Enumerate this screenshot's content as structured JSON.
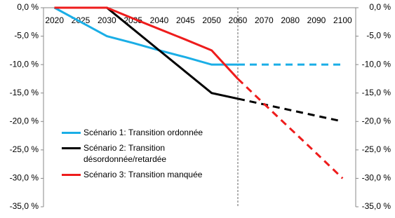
{
  "chart_data": {
    "type": "line",
    "categories": [
      "2020",
      "2025",
      "2030",
      "2035",
      "2040",
      "2045",
      "2050",
      "2060",
      "2070",
      "2080",
      "2090",
      "2100"
    ],
    "series": [
      {
        "name": "Scénario 1: Transition ordonnée",
        "color": "#1aaee6",
        "values": [
          0,
          -2.5,
          -5,
          -6.2,
          -7.5,
          -8.7,
          -10,
          -10,
          -10,
          -10,
          -10,
          -10
        ]
      },
      {
        "name": "Scénario 2: Transition désordonnée/retardée",
        "color": "#000000",
        "values": [
          0,
          0,
          0,
          -3.75,
          -7.5,
          -11.25,
          -15,
          -16,
          -17,
          -18,
          -19,
          -20
        ]
      },
      {
        "name": "Scénario 3: Transition manquée",
        "color": "#ee1c1c",
        "values": [
          0,
          0,
          0,
          -1.9,
          -3.75,
          -5.6,
          -7.5,
          -12.5,
          -16.9,
          -21.25,
          -25.6,
          -30
        ]
      }
    ],
    "projection_from": "2060",
    "ylim": [
      -35,
      0
    ],
    "yticks": [
      {
        "value": 0,
        "label": "0,0 %"
      },
      {
        "value": -5,
        "label": "-5,0 %"
      },
      {
        "value": -10,
        "label": "-10,0 %"
      },
      {
        "value": -15,
        "label": "-15,0 %"
      },
      {
        "value": -20,
        "label": "-20,0 %"
      },
      {
        "value": -25,
        "label": "-25,0 %"
      },
      {
        "value": -30,
        "label": "-30,0 %"
      },
      {
        "value": -35,
        "label": "-35,0 %"
      }
    ],
    "secondary_axis_mirror": true
  }
}
